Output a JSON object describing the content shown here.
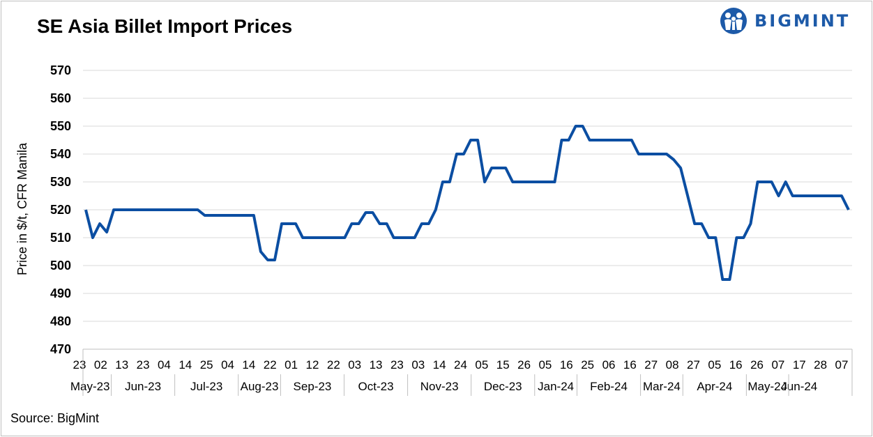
{
  "title": "SE Asia Billet Import Prices",
  "brand": {
    "name": "BIGMINT",
    "color": "#1d5aa8",
    "icon": "bigmint-people-logo-icon"
  },
  "source": "Source: BigMint",
  "chart_data": {
    "type": "line",
    "title": "SE Asia Billet Import Prices",
    "ylabel": "Price in $/t, CFR Manila",
    "xlabel": "",
    "ylim": [
      470,
      570
    ],
    "yticks": [
      470,
      480,
      490,
      500,
      510,
      520,
      530,
      540,
      550,
      560,
      570
    ],
    "grid": true,
    "line_color": "#0b4ea2",
    "x_day_labels": [
      "23",
      "02",
      "13",
      "23",
      "04",
      "14",
      "25",
      "04",
      "14",
      "22",
      "01",
      "12",
      "22",
      "03",
      "13",
      "23",
      "03",
      "14",
      "24",
      "05",
      "15",
      "26",
      "05",
      "16",
      "25",
      "06",
      "16",
      "27",
      "08",
      "27",
      "05",
      "16",
      "26",
      "07",
      "17",
      "28",
      "07"
    ],
    "x_month_labels": [
      "May-23",
      "Jun-23",
      "Jul-23",
      "Aug-23",
      "Sep-23",
      "Oct-23",
      "Nov-23",
      "Dec-23",
      "Jan-24",
      "Feb-24",
      "Mar-24",
      "Apr-24",
      "May-24",
      "Jun-24"
    ],
    "x_month_spans": [
      2,
      3,
      3,
      2,
      3,
      3,
      3,
      3,
      2,
      3,
      2,
      3,
      2,
      1
    ],
    "series": [
      {
        "values": [
          520,
          510,
          515,
          512,
          520,
          520,
          520,
          520,
          520,
          520,
          520,
          520,
          520,
          520,
          520,
          520,
          520,
          518,
          518,
          518,
          518,
          518,
          518,
          518,
          518,
          505,
          502,
          502,
          515,
          515,
          515,
          510,
          510,
          510,
          510,
          510,
          510,
          510,
          515,
          515,
          519,
          519,
          515,
          515,
          510,
          510,
          510,
          510,
          515,
          515,
          520,
          530,
          530,
          540,
          540,
          545,
          545,
          530,
          535,
          535,
          535,
          530,
          530,
          530,
          530,
          530,
          530,
          530,
          545,
          545,
          550,
          550,
          545,
          545,
          545,
          545,
          545,
          545,
          545,
          540,
          540,
          540,
          540,
          540,
          538,
          535,
          525,
          515,
          515,
          510,
          510,
          495,
          495,
          510,
          510,
          515,
          530,
          530,
          530,
          525,
          530,
          525,
          525,
          525,
          525,
          525,
          525,
          525,
          525,
          520
        ]
      }
    ]
  }
}
